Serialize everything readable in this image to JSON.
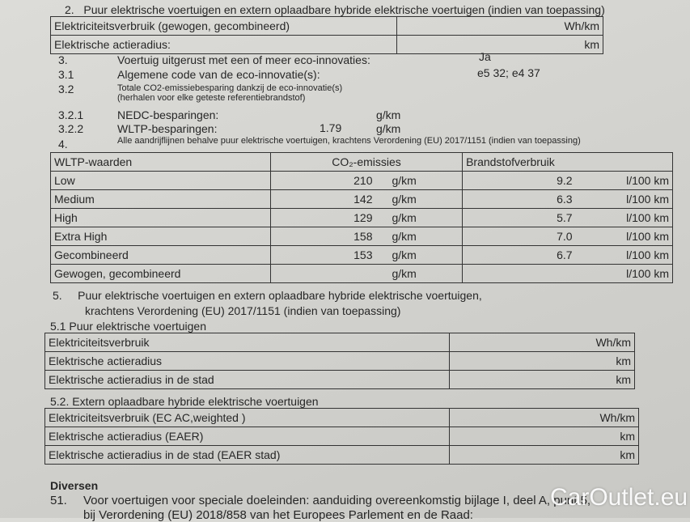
{
  "s2": {
    "num": "2.",
    "title": "Puur elektrische voertuigen en extern oplaadbare hybride elektrische voertuigen (indien van toepassing)",
    "rows": [
      {
        "label": "Elektriciteitsverbruik (gewogen, gecombineerd)",
        "unit": "Wh/km"
      },
      {
        "label": "Elektrische actieradius:",
        "unit": "km"
      }
    ]
  },
  "s3": [
    {
      "num": "3.",
      "label": "Voertuig uitgerust met een of meer eco-innovaties:",
      "value": "Ja"
    },
    {
      "num": "3.1",
      "label": "Algemene code van de eco-innovatie(s):",
      "value": "e5 32; e4 37"
    },
    {
      "num": "3.2",
      "label": "Totale CO2-emissiebesparing dankzij de eco-innovatie(s)",
      "label2": "(herhalen voor elke geteste referentiebrandstof)"
    },
    {
      "num": "3.2.1",
      "label": "NEDC-besparingen:",
      "value": "",
      "unit": "g/km"
    },
    {
      "num": "3.2.2",
      "label": "WLTP-besparingen:",
      "value": "1.79",
      "unit": "g/km"
    }
  ],
  "s4": {
    "num": "4.",
    "title": "Alle aandrijflijnen behalve puur elektrische voertuigen, krachtens Verordening (EU) 2017/1151 (indien van toepassing)",
    "headers": [
      "WLTP-waarden",
      "CO₂-emissies",
      "Brandstofverbruik"
    ],
    "rows": [
      {
        "label": "Low",
        "co2": "210",
        "co2_unit": "g/km",
        "fuel": "9.2",
        "fuel_unit": "l/100 km"
      },
      {
        "label": "Medium",
        "co2": "142",
        "co2_unit": "g/km",
        "fuel": "6.3",
        "fuel_unit": "l/100 km"
      },
      {
        "label": "High",
        "co2": "129",
        "co2_unit": "g/km",
        "fuel": "5.7",
        "fuel_unit": "l/100 km"
      },
      {
        "label": "Extra High",
        "co2": "158",
        "co2_unit": "g/km",
        "fuel": "7.0",
        "fuel_unit": "l/100 km"
      },
      {
        "label": "Gecombineerd",
        "co2": "153",
        "co2_unit": "g/km",
        "fuel": "6.7",
        "fuel_unit": "l/100 km"
      },
      {
        "label": "Gewogen, gecombineerd",
        "co2": "",
        "co2_unit": "g/km",
        "fuel": "",
        "fuel_unit": "l/100 km"
      }
    ]
  },
  "s5": {
    "num": "5.",
    "line1": "Puur elektrische voertuigen en extern oplaadbare hybride elektrische voertuigen,",
    "line2": "krachtens Verordening (EU) 2017/1151 (indien van toepassing)",
    "t1": {
      "title": "5.1  Puur elektrische voertuigen",
      "rows": [
        {
          "label": "Elektriciteitsverbruik",
          "unit": "Wh/km"
        },
        {
          "label": "Elektrische actieradius",
          "unit": "km"
        },
        {
          "label": "Elektrische actieradius in de stad",
          "unit": "km"
        }
      ]
    },
    "t2": {
      "title": "5.2.  Extern oplaadbare hybride elektrische voertuigen",
      "rows": [
        {
          "label": "Elektriciteitsverbruik (EC AC,weighted )",
          "unit": "Wh/km"
        },
        {
          "label": "Elektrische actieradius (EAER)",
          "unit": "km"
        },
        {
          "label": "Elektrische actieradius in de stad (EAER stad)",
          "unit": "km"
        }
      ]
    }
  },
  "div": {
    "title": "Diversen",
    "num": "51.",
    "line1": "Voor voertuigen voor speciale doeleinden: aanduiding overeenkomstig bijlage I, deel A, punt 5,",
    "line2": "bij Verordening (EU) 2018/858 van het Europees Parlement en de Raad:"
  },
  "watermark": "CarOutlet.eu"
}
